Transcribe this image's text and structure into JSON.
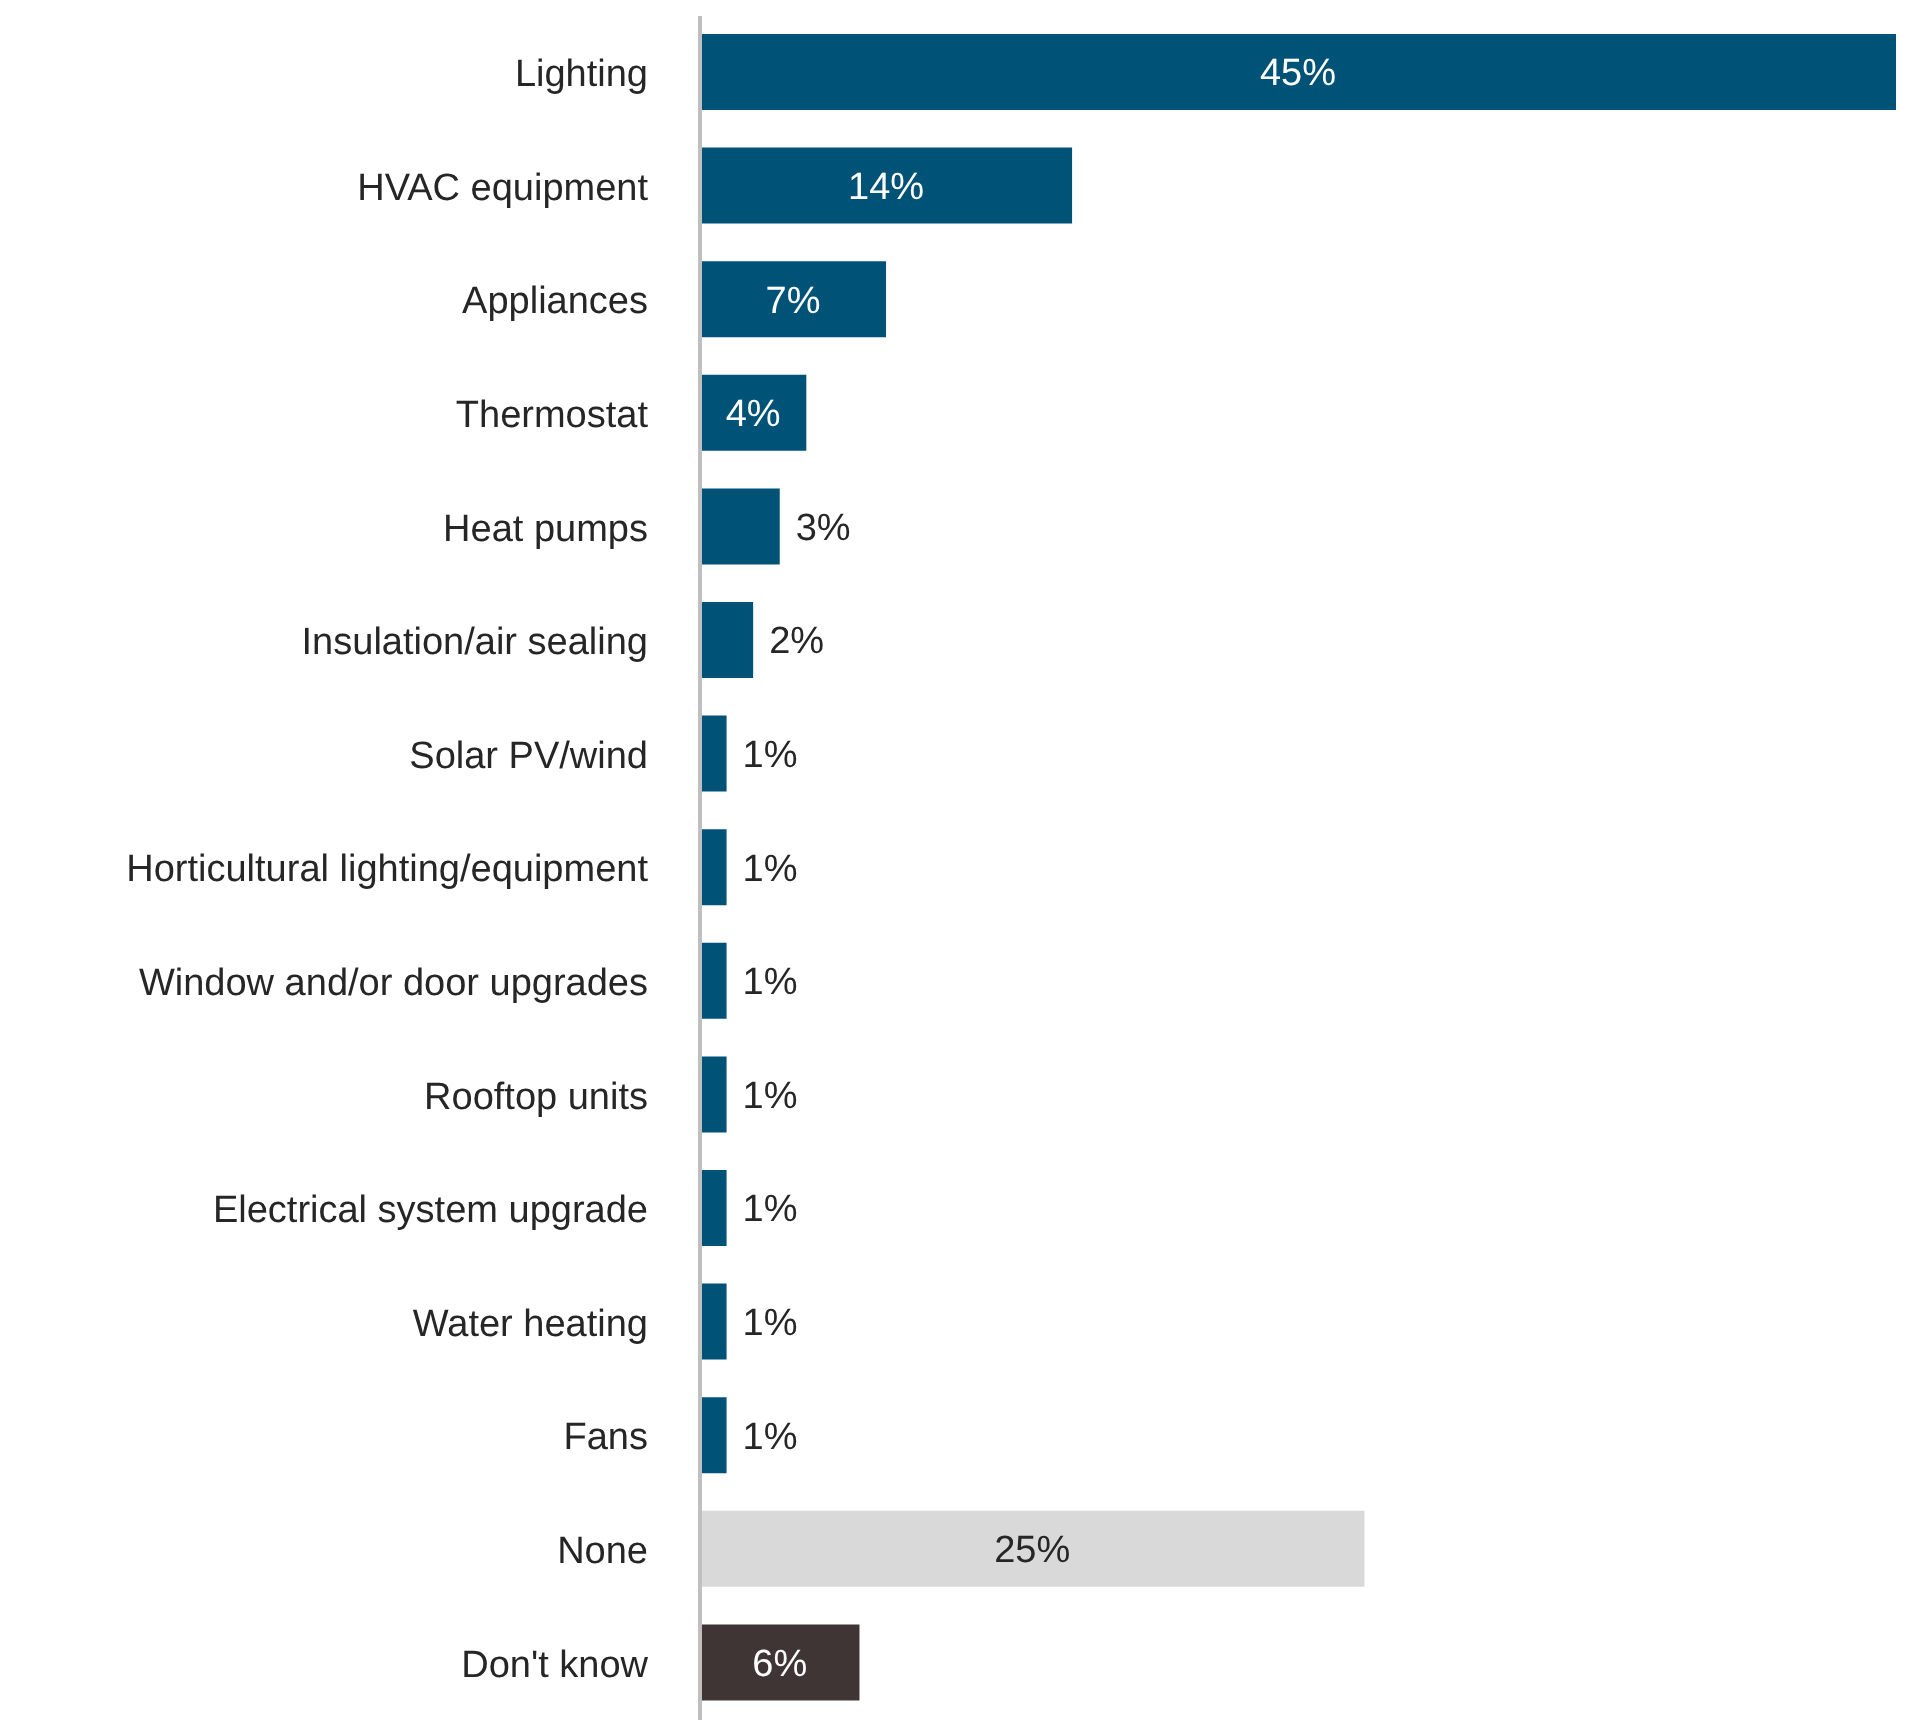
{
  "chart_data": {
    "type": "bar",
    "orientation": "horizontal",
    "categories": [
      "Lighting",
      "HVAC equipment",
      "Appliances",
      "Thermostat",
      "Heat pumps",
      "Insulation/air sealing",
      "Solar PV/wind",
      "Horticultural lighting/equipment",
      "Window and/or door upgrades",
      "Rooftop units",
      "Electrical system upgrade",
      "Water heating",
      "Fans",
      "None",
      "Don't know"
    ],
    "values": [
      45,
      14,
      7,
      4,
      3,
      2,
      1,
      1,
      1,
      1,
      1,
      1,
      1,
      25,
      6
    ],
    "value_labels": [
      "45%",
      "14%",
      "7%",
      "4%",
      "3%",
      "2%",
      "1%",
      "1%",
      "1%",
      "1%",
      "1%",
      "1%",
      "1%",
      "25%",
      "6%"
    ],
    "colors": [
      "#005276",
      "#005276",
      "#005276",
      "#005276",
      "#005276",
      "#005276",
      "#005276",
      "#005276",
      "#005276",
      "#005276",
      "#005276",
      "#005276",
      "#005276",
      "#d9d9d9",
      "#3f3534"
    ]
  }
}
